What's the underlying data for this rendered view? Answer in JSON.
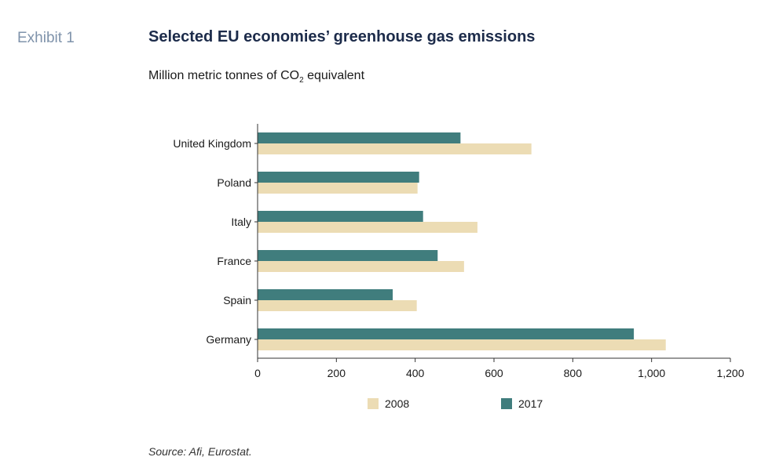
{
  "header": {
    "exhibit_label": "Exhibit 1",
    "title": "Selected EU economies’ greenhouse gas emissions",
    "subtitle_prefix": "Million metric tonnes of CO",
    "subtitle_subscript": "2",
    "subtitle_suffix": " equivalent"
  },
  "footer": {
    "source": "Source: Afi, Eurostat."
  },
  "chart_data": {
    "type": "bar",
    "orientation": "horizontal",
    "categories": [
      "United Kingdom",
      "Poland",
      "Italy",
      "France",
      "Spain",
      "Germany"
    ],
    "series": [
      {
        "name": "2008",
        "values": [
          695,
          406,
          558,
          524,
          404,
          1036
        ],
        "color": "#ecdcb4"
      },
      {
        "name": "2017",
        "values": [
          515,
          410,
          420,
          457,
          343,
          955
        ],
        "color": "#407d7d"
      }
    ],
    "xlim": [
      0,
      1200
    ],
    "xticks": [
      "0",
      "200",
      "400",
      "600",
      "800",
      "1,000",
      "1,200"
    ],
    "xtick_values": [
      0,
      200,
      400,
      600,
      800,
      1000,
      1200
    ],
    "legend_position": "bottom",
    "grid": false
  }
}
